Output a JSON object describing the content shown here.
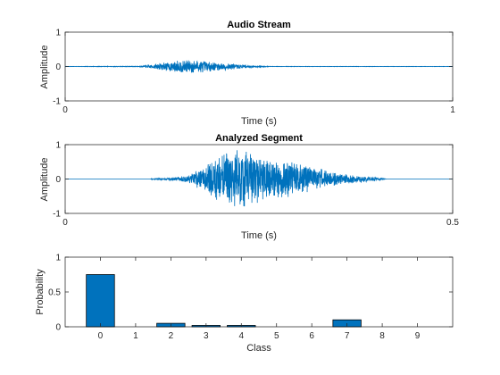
{
  "chart_data": [
    {
      "type": "line",
      "title": "Audio Stream",
      "xlabel": "Time (s)",
      "ylabel": "Amplitude",
      "xlim": [
        0,
        1
      ],
      "ylim": [
        -1,
        1
      ],
      "xticks": [
        "0",
        "1"
      ],
      "yticks": [
        "-1",
        "0",
        "1"
      ],
      "grid": false,
      "color": "#0072BD",
      "series": [
        {
          "envelope": [
            {
              "x": 0.0,
              "a": 0.004
            },
            {
              "x": 0.19,
              "a": 0.01
            },
            {
              "x": 0.24,
              "a": 0.09
            },
            {
              "x": 0.29,
              "a": 0.18
            },
            {
              "x": 0.33,
              "a": 0.2
            },
            {
              "x": 0.38,
              "a": 0.14
            },
            {
              "x": 0.43,
              "a": 0.09
            },
            {
              "x": 0.47,
              "a": 0.05
            },
            {
              "x": 0.5,
              "a": 0.02
            },
            {
              "x": 0.53,
              "a": 0.006
            },
            {
              "x": 1.0,
              "a": 0.004
            }
          ]
        }
      ]
    },
    {
      "type": "line",
      "title": "Analyzed Segment",
      "xlabel": "Time (s)",
      "ylabel": "Amplitude",
      "xlim": [
        0,
        0.5
      ],
      "ylim": [
        -1,
        1
      ],
      "xticks": [
        "0",
        "0.5"
      ],
      "yticks": [
        "-1",
        "0",
        "1"
      ],
      "grid": false,
      "color": "#0072BD",
      "series": [
        {
          "envelope": [
            {
              "x": 0.0,
              "a": 0.0
            },
            {
              "x": 0.11,
              "a": 0.0
            },
            {
              "x": 0.112,
              "a": 0.02
            },
            {
              "x": 0.14,
              "a": 0.05
            },
            {
              "x": 0.16,
              "a": 0.12
            },
            {
              "x": 0.18,
              "a": 0.4
            },
            {
              "x": 0.2,
              "a": 0.7
            },
            {
              "x": 0.215,
              "a": 0.9
            },
            {
              "x": 0.23,
              "a": 0.85
            },
            {
              "x": 0.245,
              "a": 0.72
            },
            {
              "x": 0.265,
              "a": 0.6
            },
            {
              "x": 0.29,
              "a": 0.58
            },
            {
              "x": 0.31,
              "a": 0.42
            },
            {
              "x": 0.33,
              "a": 0.3
            },
            {
              "x": 0.35,
              "a": 0.18
            },
            {
              "x": 0.38,
              "a": 0.1
            },
            {
              "x": 0.405,
              "a": 0.05
            },
            {
              "x": 0.415,
              "a": 0.0
            },
            {
              "x": 0.5,
              "a": 0.0
            }
          ]
        }
      ]
    },
    {
      "type": "bar",
      "title": "",
      "xlabel": "Class",
      "ylabel": "Probability",
      "xlim": [
        -1,
        10
      ],
      "ylim": [
        0,
        1
      ],
      "xticks": [
        "0",
        "1",
        "2",
        "3",
        "4",
        "5",
        "6",
        "7",
        "8",
        "9"
      ],
      "yticks": [
        "0",
        "0.5",
        "1"
      ],
      "grid": false,
      "color": "#0072BD",
      "categories": [
        "0",
        "1",
        "2",
        "3",
        "4",
        "5",
        "6",
        "7",
        "8",
        "9"
      ],
      "values": [
        0.75,
        0.0,
        0.05,
        0.02,
        0.02,
        0.0,
        0.0,
        0.1,
        0.0,
        0.0
      ]
    }
  ]
}
